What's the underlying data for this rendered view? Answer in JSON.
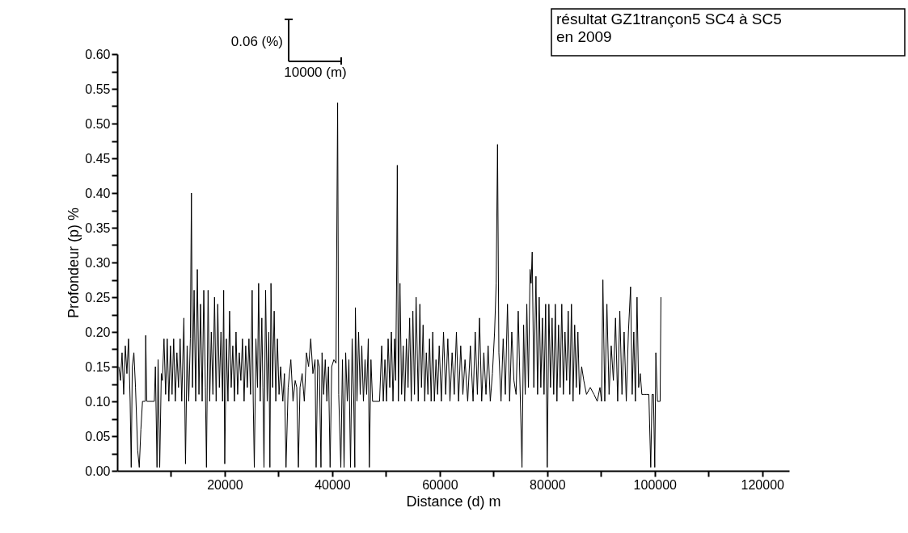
{
  "chart_data": {
    "type": "line",
    "xlabel": "Distance (d) m",
    "ylabel": "Profondeur (p) %",
    "annotations": [
      "0.06 (%)",
      "10000 (m)",
      "résultat GZ1trançon5 SC4 à SC5\n en 2009"
    ],
    "xlim": [
      0,
      125000
    ],
    "ylim": [
      0,
      0.6
    ],
    "xticks": [
      {
        "value": 10000,
        "label": null
      },
      20000,
      {
        "value": 30000,
        "label": null
      },
      40000,
      {
        "value": 50000,
        "label": null
      },
      60000,
      {
        "value": 70000,
        "label": null
      },
      80000,
      {
        "value": 90000,
        "label": null
      },
      100000,
      {
        "value": 110000,
        "label": null
      },
      120000
    ],
    "yticks": [
      {
        "value": 0,
        "label": "0.00"
      },
      {
        "value": 0.025,
        "label": null
      },
      {
        "value": 0.05,
        "label": "0.05"
      },
      {
        "value": 0.075,
        "label": null
      },
      {
        "value": 0.1,
        "label": "0.10"
      },
      {
        "value": 0.125,
        "label": null
      },
      {
        "value": 0.15,
        "label": "0.15"
      },
      {
        "value": 0.175,
        "label": null
      },
      {
        "value": 0.2,
        "label": "0.20"
      },
      {
        "value": 0.225,
        "label": null
      },
      {
        "value": 0.25,
        "label": "0.25"
      },
      {
        "value": 0.275,
        "label": null
      },
      {
        "value": 0.3,
        "label": "0.30"
      },
      {
        "value": 0.325,
        "label": null
      },
      {
        "value": 0.35,
        "label": "0.35"
      },
      {
        "value": 0.375,
        "label": null
      },
      {
        "value": 0.4,
        "label": "0.40"
      },
      {
        "value": 0.425,
        "label": null
      },
      {
        "value": 0.45,
        "label": "0.45"
      },
      {
        "value": 0.475,
        "label": null
      },
      {
        "value": 0.5,
        "label": "0.50"
      },
      {
        "value": 0.525,
        "label": null
      },
      {
        "value": 0.55,
        "label": "0.55"
      },
      {
        "value": 0.575,
        "label": null
      },
      {
        "value": 0.6,
        "label": "0.60"
      }
    ],
    "grid": false,
    "marker": "none",
    "line_style": "solid",
    "series": [
      {
        "color": "#000000",
        "x": [
          300,
          600,
          900,
          1200,
          1500,
          1800,
          2100,
          2400,
          2600,
          2800,
          3100,
          3400,
          3800,
          4100,
          4400,
          4700,
          5200,
          5300,
          5500,
          6900,
          7100,
          7400,
          7600,
          7900,
          8200,
          8400,
          8700,
          9000,
          9300,
          9600,
          9900,
          10200,
          10500,
          10800,
          11100,
          11400,
          11700,
          12000,
          12400,
          12700,
          13000,
          13300,
          13600,
          13800,
          14000,
          14300,
          14600,
          14900,
          15200,
          15500,
          15800,
          16100,
          16400,
          16600,
          16900,
          17200,
          17500,
          17800,
          18100,
          18400,
          18700,
          19000,
          19300,
          19600,
          19800,
          20000,
          20300,
          20600,
          20900,
          21200,
          21500,
          21800,
          22100,
          22400,
          22700,
          23000,
          23300,
          23600,
          23900,
          24200,
          24500,
          24800,
          25100,
          25300,
          25500,
          25800,
          26100,
          26300,
          26600,
          26900,
          27100,
          27300,
          27600,
          27900,
          28200,
          28400,
          28600,
          28900,
          29200,
          29500,
          29800,
          30100,
          30400,
          30800,
          31100,
          31400,
          31800,
          32300,
          32700,
          33100,
          33400,
          33700,
          34000,
          34400,
          34800,
          35200,
          35600,
          36000,
          36400,
          36800,
          37000,
          37300,
          37600,
          37900,
          38100,
          38400,
          38700,
          39000,
          39300,
          39600,
          39900,
          40300,
          40700,
          41000,
          41200,
          41600,
          41900,
          42200,
          42500,
          42800,
          43100,
          43400,
          43700,
          44000,
          44200,
          44300,
          44600,
          44900,
          45200,
          45500,
          45800,
          46100,
          46400,
          46700,
          46900,
          47200,
          47500,
          48800,
          49200,
          49500,
          49800,
          50100,
          50400,
          50700,
          51000,
          51300,
          51600,
          51800,
          52000,
          52100,
          52300,
          52600,
          52900,
          53200,
          53500,
          53800,
          54100,
          54400,
          54700,
          55000,
          55300,
          55600,
          56000,
          56300,
          56600,
          56900,
          57200,
          57500,
          57800,
          58100,
          58400,
          58700,
          59000,
          59300,
          59600,
          59900,
          60300,
          60700,
          61100,
          61500,
          61900,
          62300,
          62700,
          63100,
          63500,
          63900,
          64300,
          64700,
          65200,
          65700,
          66200,
          66600,
          67000,
          67400,
          67800,
          68200,
          68600,
          69000,
          69400,
          69800,
          70200,
          70500,
          70750,
          71000,
          71400,
          71800,
          72200,
          72600,
          73000,
          73400,
          73800,
          74200,
          74600,
          75000,
          75300,
          75600,
          75900,
          76200,
          76500,
          76800,
          77000,
          77200,
          77500,
          77900,
          78200,
          78500,
          78800,
          79100,
          79400,
          79700,
          80000,
          80300,
          80600,
          80900,
          81200,
          81500,
          81800,
          82100,
          82400,
          82700,
          83000,
          83300,
          83600,
          83900,
          84200,
          84500,
          84800,
          85100,
          85400,
          85700,
          86000,
          86400,
          86800,
          87300,
          88000,
          88700,
          89300,
          89800,
          90100,
          90350,
          90700,
          91100,
          91500,
          91900,
          92300,
          92700,
          93100,
          93500,
          93900,
          94300,
          94700,
          95100,
          95500,
          95800,
          96100,
          96400,
          96700,
          97000,
          97300,
          97600,
          98000,
          98500,
          98900,
          99250,
          99500,
          99750,
          100000,
          100200,
          100500,
          100800,
          101000,
          101150
        ],
        "values": [
          0.15,
          0.13,
          0.17,
          0.11,
          0.18,
          0.14,
          0.19,
          0.1,
          0.005,
          0.15,
          0.17,
          0.12,
          0.03,
          0.005,
          0.06,
          0.1,
          0.1,
          0.195,
          0.1,
          0.1,
          0.15,
          0.005,
          0.16,
          0.005,
          0.14,
          0.13,
          0.19,
          0.11,
          0.19,
          0.1,
          0.18,
          0.11,
          0.19,
          0.1,
          0.17,
          0.12,
          0.19,
          0.1,
          0.22,
          0.01,
          0.18,
          0.1,
          0.19,
          0.4,
          0.12,
          0.26,
          0.1,
          0.29,
          0.11,
          0.24,
          0.1,
          0.26,
          0.12,
          0.005,
          0.26,
          0.1,
          0.2,
          0.11,
          0.25,
          0.1,
          0.24,
          0.12,
          0.2,
          0.1,
          0.26,
          0.01,
          0.19,
          0.1,
          0.23,
          0.12,
          0.18,
          0.1,
          0.2,
          0.11,
          0.17,
          0.13,
          0.19,
          0.1,
          0.18,
          0.12,
          0.19,
          0.11,
          0.26,
          0.1,
          0.005,
          0.19,
          0.12,
          0.27,
          0.1,
          0.22,
          0.12,
          0.005,
          0.26,
          0.1,
          0.2,
          0.005,
          0.27,
          0.12,
          0.23,
          0.1,
          0.19,
          0.11,
          0.15,
          0.1,
          0.14,
          0.005,
          0.12,
          0.16,
          0.1,
          0.13,
          0.12,
          0.005,
          0.12,
          0.14,
          0.1,
          0.17,
          0.15,
          0.19,
          0.14,
          0.16,
          0.005,
          0.16,
          0.15,
          0.005,
          0.17,
          0.11,
          0.16,
          0.1,
          0.15,
          0.005,
          0.15,
          0.16,
          0.155,
          0.53,
          0.11,
          0.005,
          0.16,
          0.005,
          0.17,
          0.1,
          0.16,
          0.005,
          0.19,
          0.1,
          0.005,
          0.235,
          0.1,
          0.2,
          0.11,
          0.18,
          0.1,
          0.16,
          0.11,
          0.19,
          0.005,
          0.16,
          0.1,
          0.1,
          0.18,
          0.1,
          0.16,
          0.1,
          0.19,
          0.12,
          0.2,
          0.1,
          0.19,
          0.13,
          0.3,
          0.44,
          0.1,
          0.27,
          0.11,
          0.18,
          0.1,
          0.19,
          0.12,
          0.22,
          0.1,
          0.23,
          0.11,
          0.25,
          0.1,
          0.24,
          0.12,
          0.21,
          0.1,
          0.17,
          0.11,
          0.19,
          0.1,
          0.2,
          0.1,
          0.16,
          0.11,
          0.18,
          0.1,
          0.2,
          0.11,
          0.19,
          0.1,
          0.17,
          0.11,
          0.2,
          0.1,
          0.18,
          0.11,
          0.16,
          0.1,
          0.18,
          0.1,
          0.2,
          0.11,
          0.22,
          0.1,
          0.17,
          0.11,
          0.18,
          0.1,
          0.14,
          0.2,
          0.27,
          0.47,
          0.17,
          0.1,
          0.19,
          0.11,
          0.24,
          0.1,
          0.2,
          0.13,
          0.11,
          0.23,
          0.1,
          0.005,
          0.21,
          0.11,
          0.24,
          0.12,
          0.29,
          0.27,
          0.315,
          0.12,
          0.28,
          0.11,
          0.25,
          0.12,
          0.22,
          0.11,
          0.24,
          0.005,
          0.24,
          0.12,
          0.22,
          0.11,
          0.24,
          0.1,
          0.21,
          0.12,
          0.24,
          0.11,
          0.2,
          0.13,
          0.23,
          0.11,
          0.24,
          0.1,
          0.21,
          0.12,
          0.2,
          0.11,
          0.15,
          0.13,
          0.11,
          0.12,
          0.11,
          0.1,
          0.12,
          0.1,
          0.275,
          0.1,
          0.24,
          0.11,
          0.18,
          0.13,
          0.22,
          0.1,
          0.23,
          0.11,
          0.2,
          0.1,
          0.2,
          0.265,
          0.11,
          0.2,
          0.1,
          0.25,
          0.12,
          0.14,
          0.11,
          0.11,
          0.11,
          0.11,
          0.005,
          0.11,
          0.11,
          0.005,
          0.17,
          0.1,
          0.1,
          0.1,
          0.25
        ]
      }
    ]
  }
}
